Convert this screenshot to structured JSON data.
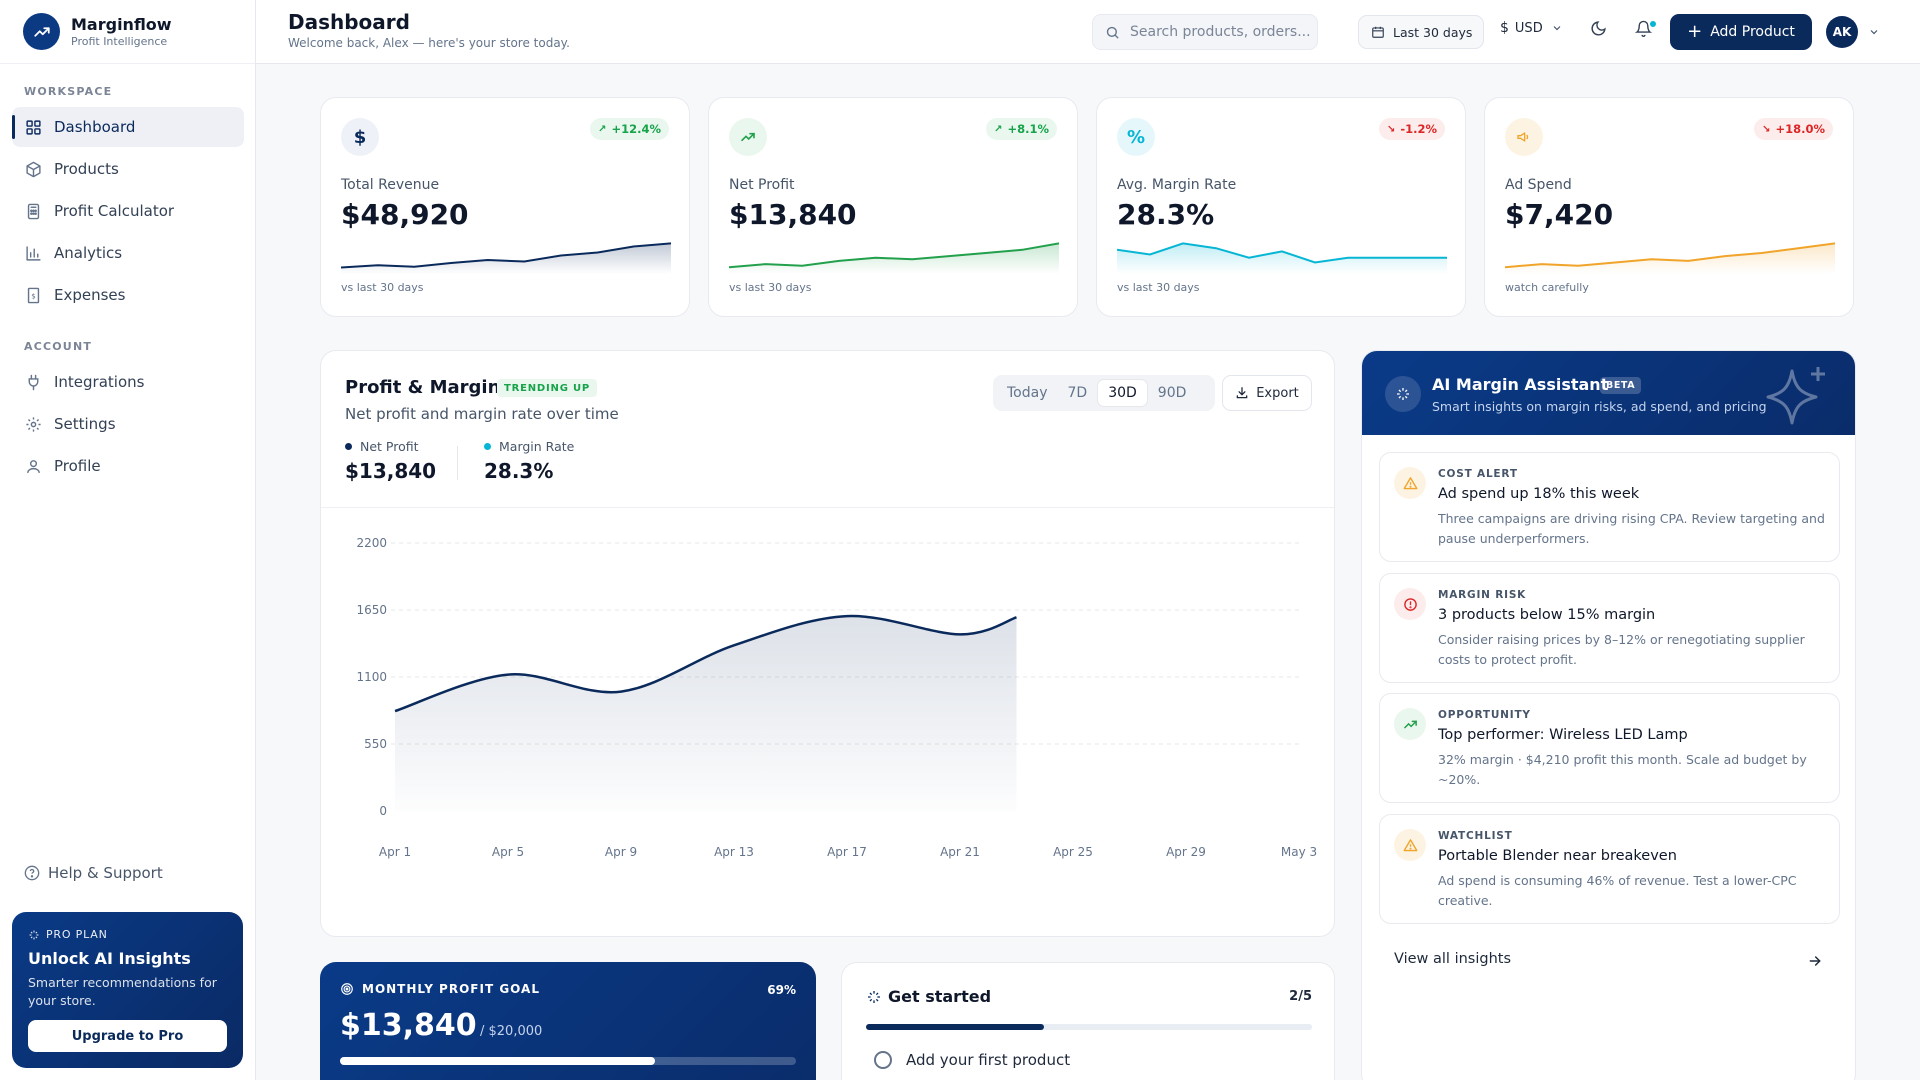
{
  "brand": {
    "name": "Marginflow",
    "tagline": "Profit Intelligence"
  },
  "sidebar": {
    "workspace_label": "WORKSPACE",
    "account_label": "ACCOUNT",
    "workspace_items": [
      {
        "label": "Dashboard",
        "icon": "grid-icon",
        "active": true
      },
      {
        "label": "Products",
        "icon": "box-icon"
      },
      {
        "label": "Profit Calculator",
        "icon": "calculator-icon"
      },
      {
        "label": "Analytics",
        "icon": "bar-chart-icon"
      },
      {
        "label": "Expenses",
        "icon": "receipt-icon"
      }
    ],
    "account_items": [
      {
        "label": "Integrations",
        "icon": "plug-icon"
      },
      {
        "label": "Settings",
        "icon": "gear-icon"
      },
      {
        "label": "Profile",
        "icon": "user-icon"
      }
    ],
    "help_label": "Help & Support",
    "pro": {
      "tag": "PRO PLAN",
      "title": "Unlock AI Insights",
      "desc": "Smarter recommendations for your store.",
      "button": "Upgrade to Pro"
    }
  },
  "header": {
    "title": "Dashboard",
    "subtitle": "Welcome back, Alex — here's your store today.",
    "search_placeholder": "Search products, orders...",
    "date_range": "Last 30 days",
    "currency_symbol": "$",
    "currency": "USD",
    "add_button": "Add Product",
    "avatar_initials": "AK"
  },
  "kpis": [
    {
      "label": "Total Revenue",
      "value": "$48,920",
      "badge": "+12.4%",
      "trend": "up",
      "icon": "$",
      "foot": "vs last 30 days",
      "color": "#0b2a5c",
      "bg": "#eef1f7",
      "spark": [
        3,
        4.5,
        3.5,
        6,
        8,
        7,
        11,
        13,
        17,
        19
      ]
    },
    {
      "label": "Net Profit",
      "value": "$13,840",
      "badge": "+8.1%",
      "trend": "up",
      "icon": "trend-up-icon",
      "foot": "vs last 30 days",
      "color": "#22a04b",
      "bg": "#eaf7ee",
      "spark": [
        3,
        5,
        4,
        7,
        9,
        8,
        10,
        12,
        14,
        18
      ]
    },
    {
      "label": "Avg. Margin Rate",
      "value": "28.3%",
      "badge": "-1.2%",
      "trend": "down",
      "icon": "%",
      "foot": "vs last 30 days",
      "color": "#06b6d4",
      "bg": "#e6f7fb",
      "spark": [
        14,
        11,
        18,
        15,
        9,
        13,
        6,
        9,
        9,
        9,
        9
      ]
    },
    {
      "label": "Ad Spend",
      "value": "$7,420",
      "badge": "+18.0%",
      "trend": "down",
      "icon": "megaphone-icon",
      "foot": "watch carefully",
      "color": "#f0a42a",
      "bg": "#fdf3e2",
      "spark": [
        3,
        5,
        4,
        6,
        8,
        7,
        10,
        12,
        15,
        18
      ]
    }
  ],
  "profit_margin": {
    "title": "Profit & Margin",
    "badge": "TRENDING UP",
    "subtitle": "Net profit and margin rate over time",
    "net_profit_label": "Net Profit",
    "net_profit_value": "$13,840",
    "margin_label": "Margin Rate",
    "margin_value": "28.3%",
    "ranges": [
      "Today",
      "7D",
      "30D",
      "90D"
    ],
    "selected_range": "30D",
    "export_label": "Export",
    "colors": {
      "profit": "#0b2a5c",
      "margin": "#06b6d4"
    }
  },
  "chart_data": {
    "type": "area",
    "x": [
      "Apr 1",
      "Apr 5",
      "Apr 9",
      "Apr 13",
      "Apr 17",
      "Apr 21",
      "Apr 23"
    ],
    "series": [
      {
        "name": "Net Profit",
        "values": [
          820,
          1120,
          980,
          1360,
          1600,
          1450,
          1590
        ]
      }
    ],
    "x_ticks": [
      "Apr 1",
      "Apr 5",
      "Apr 9",
      "Apr 13",
      "Apr 17",
      "Apr 21",
      "Apr 25",
      "Apr 29",
      "May 3"
    ],
    "y_ticks": [
      0,
      550,
      1100,
      1650,
      2200
    ],
    "ylim": [
      0,
      2200
    ],
    "grid": true
  },
  "ai": {
    "title": "AI Margin Assistant",
    "badge": "BETA",
    "subtitle": "Smart insights on margin risks, ad spend, and pricing",
    "insights": [
      {
        "category": "COST ALERT",
        "title": "Ad spend up 18% this week",
        "desc": "Three campaigns are driving rising CPA. Review targeting and pause underperformers.",
        "icon": "warning-icon",
        "color": "#f0a42a",
        "bg": "#fdf3e2"
      },
      {
        "category": "MARGIN RISK",
        "title": "3 products below 15% margin",
        "desc": "Consider raising prices by 8–12% or renegotiating supplier costs to protect profit.",
        "icon": "alert-circle-icon",
        "color": "#dc2626",
        "bg": "#fdecec"
      },
      {
        "category": "OPPORTUNITY",
        "title": "Top performer: Wireless LED Lamp",
        "desc": "32% margin · $4,210 profit this month. Scale ad budget by ~20%.",
        "icon": "trend-up-icon",
        "color": "#22a04b",
        "bg": "#eaf7ee"
      },
      {
        "category": "WATCHLIST",
        "title": "Portable Blender near breakeven",
        "desc": "Ad spend is consuming 46% of revenue. Test a lower-CPC creative.",
        "icon": "warning-icon",
        "color": "#f0a42a",
        "bg": "#fdf3e2"
      }
    ],
    "view_all": "View all insights"
  },
  "goal": {
    "tag": "MONTHLY PROFIT GOAL",
    "percent_label": "69%",
    "value": "$13,840",
    "target": "/ $20,000",
    "progress": 0.69
  },
  "started": {
    "title": "Get started",
    "count": "2/5",
    "progress": 0.4,
    "first_item": "Add your first product"
  }
}
